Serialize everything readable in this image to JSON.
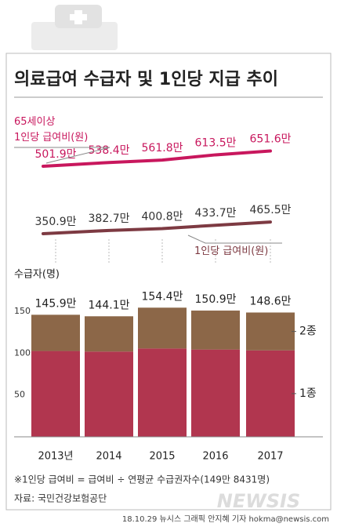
{
  "title": "의료급여 수급자 및 1인당 지급 추이",
  "footnote": "※1인당 급여비 = 급여비 ÷ 연평균 수급권자수(149만 8431명)",
  "source": "자료: 국민건강보험공단",
  "credit": "18.10.29 뉴시스 그래픽 안지혜 기자 hokma@newsis.com",
  "watermark": "NEWSIS",
  "chart_data": [
    {
      "type": "line",
      "series": [
        {
          "name": "65세이상\n1인당 급여비(원)",
          "color": "#c8175d",
          "values": [
            501.9,
            538.4,
            561.8,
            613.5,
            651.6
          ],
          "value_labels": [
            "501.9만",
            "538.4만",
            "561.8만",
            "613.5만",
            "651.6만"
          ]
        },
        {
          "name": "1인당 급여비(원)",
          "color": "#7d3a42",
          "values": [
            350.9,
            382.7,
            400.8,
            433.7,
            465.5
          ],
          "value_labels": [
            "350.9만",
            "382.7만",
            "400.8만",
            "433.7만",
            "465.5만"
          ]
        }
      ]
    },
    {
      "type": "bar",
      "stacked": true,
      "y_label": "수급자(명)",
      "categories": [
        "2013년",
        "2014",
        "2015",
        "2016",
        "2017"
      ],
      "ylim": [
        0,
        150
      ],
      "yticks": [
        50,
        100,
        150
      ],
      "series": [
        {
          "name": "1종",
          "color": "#b1364f",
          "values": [
            102.6,
            101.9,
            105.6,
            104.4,
            103.3
          ]
        },
        {
          "name": "2종",
          "color": "#8c6748",
          "values": [
            43.3,
            42.2,
            48.8,
            46.5,
            45.3
          ]
        }
      ],
      "totals": {
        "values": [
          145.9,
          144.1,
          154.4,
          150.9,
          148.6
        ],
        "value_labels": [
          "145.9만",
          "144.1만",
          "154.4만",
          "150.9만",
          "148.6만"
        ]
      }
    }
  ]
}
